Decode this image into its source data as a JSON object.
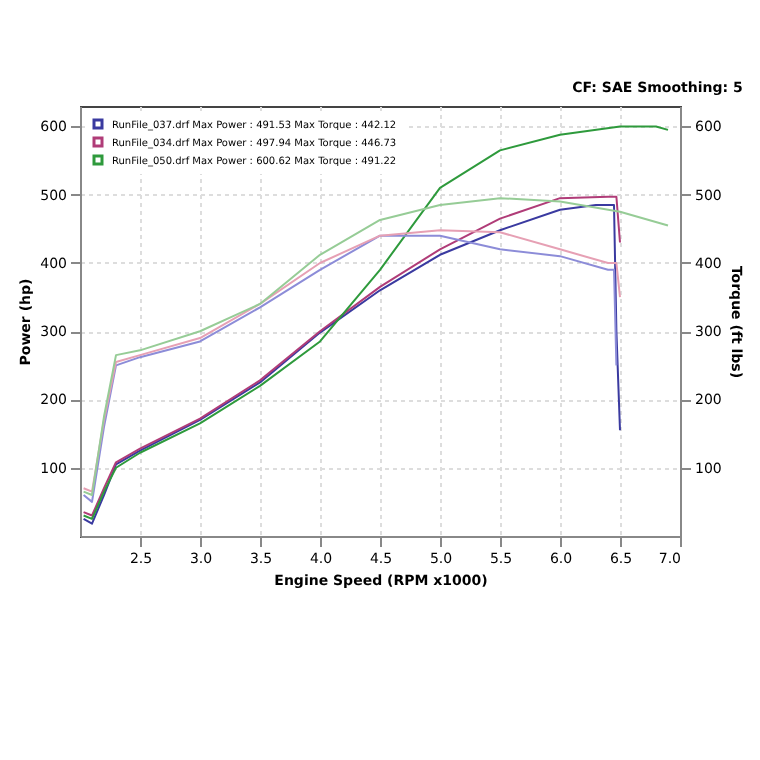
{
  "chart_data": {
    "type": "line",
    "xlabel": "Engine Speed (RPM x1000)",
    "ylabel": "Power (hp)",
    "y2label": "Torque (ft lbs)",
    "annotations": [
      "CF: SAE  Smoothing: 5"
    ],
    "xlim": [
      2.0,
      7.0
    ],
    "xticks": [
      2.5,
      {
        "value": 3,
        "label": "3.0"
      },
      3.5,
      {
        "value": 4,
        "label": "4.0"
      },
      4.5,
      {
        "value": 5,
        "label": "5.0"
      },
      5.5,
      {
        "value": 6,
        "label": "6.0"
      },
      6.5,
      {
        "value": 7,
        "label": "7.0"
      }
    ],
    "ylim": [
      0,
      630
    ],
    "yticks": [
      100,
      200,
      300,
      400,
      500,
      600
    ],
    "y2lim": [
      0,
      630
    ],
    "y2ticks": [
      100,
      200,
      300,
      400,
      500,
      600
    ],
    "grid": true,
    "legend": "top left",
    "line_style": "solid",
    "marker": "none",
    "series": [
      {
        "name": "RunFile_037.drf Max Power : 491.53   Max Torque : 442.12",
        "color": "#3a3aa0",
        "x": [
          2.03,
          2.1,
          2.2,
          2.3,
          2.5,
          3.0,
          3.5,
          4.0,
          4.5,
          5.0,
          5.5,
          6.0,
          6.3,
          6.45,
          6.47,
          6.5
        ],
        "values": [
          25,
          18,
          60,
          105,
          125,
          170,
          225,
          298,
          360,
          412,
          448,
          478,
          485,
          485,
          300,
          155
        ]
      },
      {
        "name": "RunFile_034.drf Max Power : 497.94   Max Torque : 446.73",
        "color": "#b03c78",
        "x": [
          2.03,
          2.1,
          2.2,
          2.3,
          2.5,
          3.0,
          3.5,
          4.0,
          4.5,
          5.0,
          5.5,
          6.0,
          6.4,
          6.47,
          6.5
        ],
        "values": [
          35,
          30,
          70,
          108,
          128,
          172,
          228,
          300,
          365,
          420,
          465,
          495,
          497,
          497,
          430
        ]
      },
      {
        "name": "RunFile_050.drf Max Power : 600.62   Max Torque : 491.22",
        "color": "#2e9a3c",
        "x": [
          2.03,
          2.1,
          2.2,
          2.3,
          2.5,
          3.0,
          3.5,
          4.0,
          4.5,
          5.0,
          5.5,
          6.0,
          6.5,
          6.8,
          6.9
        ],
        "values": [
          30,
          25,
          65,
          100,
          122,
          165,
          220,
          285,
          390,
          510,
          565,
          588,
          600,
          600,
          595
        ]
      },
      {
        "axis": "y2",
        "color": "#8c8cd8",
        "x": [
          2.03,
          2.1,
          2.2,
          2.3,
          2.5,
          3.0,
          3.5,
          4.0,
          4.5,
          5.0,
          5.5,
          6.0,
          6.4,
          6.45,
          6.47
        ],
        "values": [
          60,
          50,
          160,
          250,
          262,
          285,
          335,
          390,
          440,
          440,
          420,
          410,
          390,
          390,
          250
        ]
      },
      {
        "axis": "y2",
        "color": "#e6a0b4",
        "x": [
          2.03,
          2.1,
          2.2,
          2.3,
          2.5,
          3.0,
          3.5,
          4.0,
          4.5,
          5.0,
          5.5,
          6.0,
          6.4,
          6.47,
          6.5
        ],
        "values": [
          70,
          65,
          170,
          255,
          265,
          290,
          340,
          400,
          440,
          448,
          445,
          420,
          400,
          400,
          350
        ]
      },
      {
        "axis": "y2",
        "color": "#96cc96",
        "x": [
          2.03,
          2.1,
          2.2,
          2.3,
          2.5,
          3.0,
          3.5,
          4.0,
          4.5,
          5.0,
          5.5,
          6.0,
          6.5,
          6.9
        ],
        "values": [
          65,
          60,
          175,
          265,
          272,
          300,
          340,
          412,
          463,
          485,
          495,
          490,
          475,
          455
        ]
      }
    ]
  }
}
